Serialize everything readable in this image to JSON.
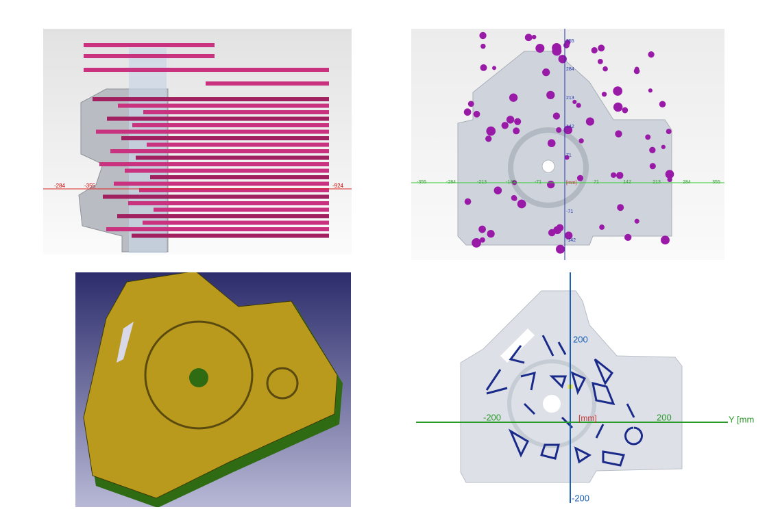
{
  "top_left": {
    "x_labels": [
      "-284",
      "-355",
      "-924"
    ]
  },
  "top_right": {
    "y_labels": [
      "355",
      "284",
      "213",
      "142",
      "71",
      "[mm]",
      "-71",
      "-142"
    ],
    "x_labels": [
      "-355",
      "-284",
      "-213",
      "-142",
      "-71",
      "71",
      "142",
      "213",
      "284",
      "355"
    ]
  },
  "bottom_right": {
    "vertical_top": "200",
    "vertical_bottom": "-200",
    "left": "-200",
    "unit": "[mm]",
    "right": "200",
    "axis_name": "Y [mm]"
  }
}
